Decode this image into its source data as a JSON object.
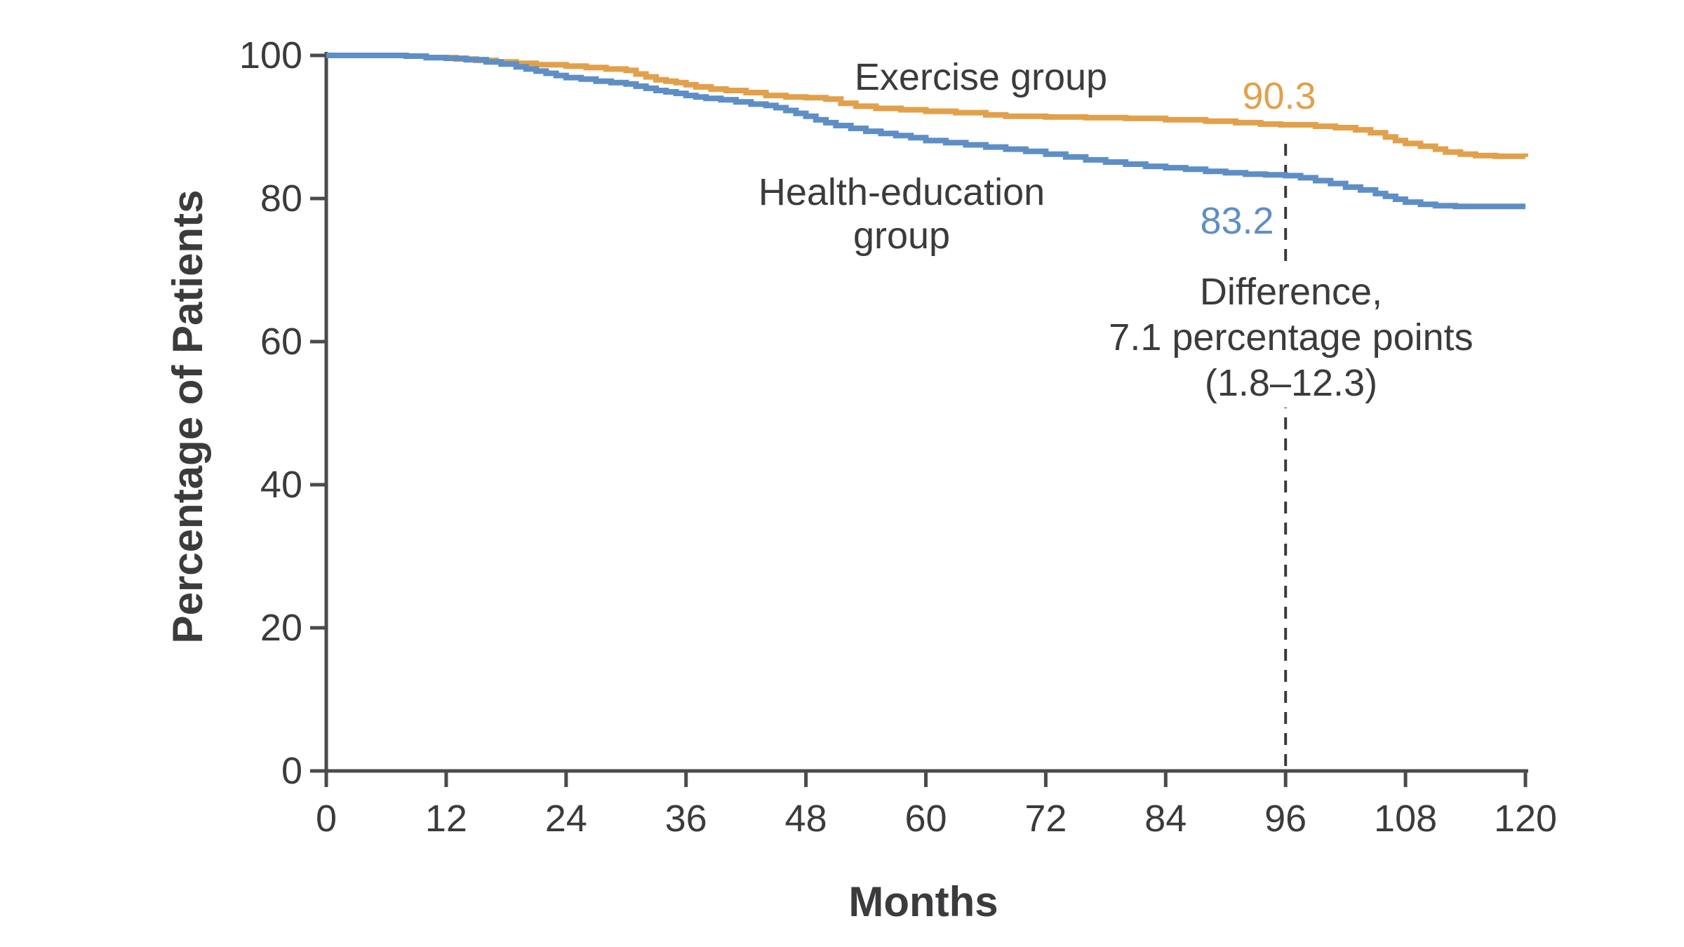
{
  "figure": {
    "background_color": "#ffffff"
  },
  "chart_data": {
    "type": "line",
    "subtype": "kaplan-meier-step",
    "title": "",
    "xlabel": "Months",
    "ylabel": "Percentage of Patients",
    "xlim": [
      0,
      120
    ],
    "ylim": [
      0,
      100
    ],
    "x_ticks": [
      0,
      12,
      24,
      36,
      48,
      60,
      72,
      84,
      96,
      108,
      120
    ],
    "y_ticks": [
      0,
      20,
      40,
      60,
      80,
      100
    ],
    "grid": false,
    "legend_position": "inline-annotations",
    "reference_line": {
      "x": 96,
      "style": "dashed",
      "color": "#3b3b3d"
    },
    "series": [
      {
        "name": "Exercise group",
        "color": "#e2a04a",
        "value_at_reference": 90.3,
        "points": [
          [
            0,
            100
          ],
          [
            8,
            99.9
          ],
          [
            10,
            99.7
          ],
          [
            13,
            99.5
          ],
          [
            15,
            99.3
          ],
          [
            17,
            99.1
          ],
          [
            19,
            98.9
          ],
          [
            21,
            98.7
          ],
          [
            24,
            98.5
          ],
          [
            26,
            98.3
          ],
          [
            28,
            98.1
          ],
          [
            30,
            97.9
          ],
          [
            31,
            97.4
          ],
          [
            32,
            97.0
          ],
          [
            33,
            96.6
          ],
          [
            34,
            96.4
          ],
          [
            35,
            96.2
          ],
          [
            36,
            95.9
          ],
          [
            37,
            95.6
          ],
          [
            38.5,
            95.3
          ],
          [
            40,
            95.1
          ],
          [
            42,
            94.8
          ],
          [
            44,
            94.4
          ],
          [
            46,
            94.2
          ],
          [
            48,
            94.1
          ],
          [
            50,
            93.9
          ],
          [
            51.5,
            93.3
          ],
          [
            53,
            92.9
          ],
          [
            55,
            92.6
          ],
          [
            57.5,
            92.4
          ],
          [
            60,
            92.2
          ],
          [
            63,
            92.0
          ],
          [
            66,
            91.7
          ],
          [
            68,
            91.5
          ],
          [
            72,
            91.4
          ],
          [
            76,
            91.3
          ],
          [
            80,
            91.2
          ],
          [
            84,
            91.0
          ],
          [
            88,
            90.8
          ],
          [
            91,
            90.6
          ],
          [
            93.5,
            90.4
          ],
          [
            95.5,
            90.3
          ],
          [
            99,
            90.1
          ],
          [
            101,
            89.9
          ],
          [
            103,
            89.6
          ],
          [
            104.5,
            89.2
          ],
          [
            106,
            88.6
          ],
          [
            107,
            88.1
          ],
          [
            108,
            87.7
          ],
          [
            109.5,
            87.3
          ],
          [
            111,
            86.9
          ],
          [
            112,
            86.5
          ],
          [
            113.5,
            86.2
          ],
          [
            115,
            86.0
          ],
          [
            117,
            85.9
          ],
          [
            120,
            85.8
          ]
        ]
      },
      {
        "name": "Health-education group",
        "color": "#5e8ec6",
        "value_at_reference": 83.2,
        "points": [
          [
            0,
            100
          ],
          [
            6,
            100
          ],
          [
            8,
            99.9
          ],
          [
            10,
            99.7
          ],
          [
            12,
            99.6
          ],
          [
            14,
            99.4
          ],
          [
            16,
            99.1
          ],
          [
            17.5,
            98.8
          ],
          [
            19,
            98.4
          ],
          [
            20,
            98.1
          ],
          [
            21,
            97.8
          ],
          [
            22,
            97.5
          ],
          [
            23,
            97.2
          ],
          [
            24,
            96.9
          ],
          [
            25.5,
            96.7
          ],
          [
            27,
            96.4
          ],
          [
            28.5,
            96.2
          ],
          [
            30,
            96.0
          ],
          [
            31,
            95.7
          ],
          [
            32,
            95.4
          ],
          [
            33,
            95.1
          ],
          [
            34,
            94.9
          ],
          [
            35,
            94.7
          ],
          [
            36,
            94.4
          ],
          [
            37,
            94.2
          ],
          [
            38,
            94.0
          ],
          [
            39.5,
            93.8
          ],
          [
            41,
            93.5
          ],
          [
            42.5,
            93.2
          ],
          [
            44,
            93.0
          ],
          [
            45,
            92.7
          ],
          [
            46,
            92.3
          ],
          [
            47,
            91.9
          ],
          [
            48,
            91.5
          ],
          [
            49,
            91.0
          ],
          [
            50,
            90.6
          ],
          [
            51,
            90.2
          ],
          [
            52.5,
            89.8
          ],
          [
            54,
            89.4
          ],
          [
            55.5,
            89.1
          ],
          [
            57,
            88.8
          ],
          [
            58.5,
            88.5
          ],
          [
            60,
            88.1
          ],
          [
            62,
            87.8
          ],
          [
            64,
            87.5
          ],
          [
            66,
            87.2
          ],
          [
            68,
            86.9
          ],
          [
            70,
            86.6
          ],
          [
            72,
            86.2
          ],
          [
            74,
            85.8
          ],
          [
            76,
            85.4
          ],
          [
            78,
            85.1
          ],
          [
            80,
            84.8
          ],
          [
            82,
            84.5
          ],
          [
            84,
            84.3
          ],
          [
            86,
            84.1
          ],
          [
            88,
            83.8
          ],
          [
            90,
            83.6
          ],
          [
            92,
            83.4
          ],
          [
            94,
            83.3
          ],
          [
            96,
            83.2
          ],
          [
            97.5,
            82.9
          ],
          [
            99,
            82.5
          ],
          [
            100.5,
            82.1
          ],
          [
            102,
            81.6
          ],
          [
            103.5,
            81.2
          ],
          [
            105,
            80.7
          ],
          [
            106,
            80.3
          ],
          [
            107,
            79.9
          ],
          [
            108,
            79.5
          ],
          [
            109.5,
            79.2
          ],
          [
            111,
            79.0
          ],
          [
            113,
            78.9
          ],
          [
            120,
            78.9
          ]
        ]
      }
    ],
    "annotations": {
      "exercise_label": "Exercise group",
      "health_label_line1": "Health-education",
      "health_label_line2": "group",
      "exercise_value": "90.3",
      "health_value": "83.2",
      "difference_line1": "Difference,",
      "difference_line2": "7.1 percentage points",
      "difference_line3": "(1.8–12.3)"
    },
    "colors": {
      "exercise": "#e2a04a",
      "health_education": "#5e8ec6",
      "axis": "#4b4b4d",
      "text": "#3b3b3d"
    }
  }
}
